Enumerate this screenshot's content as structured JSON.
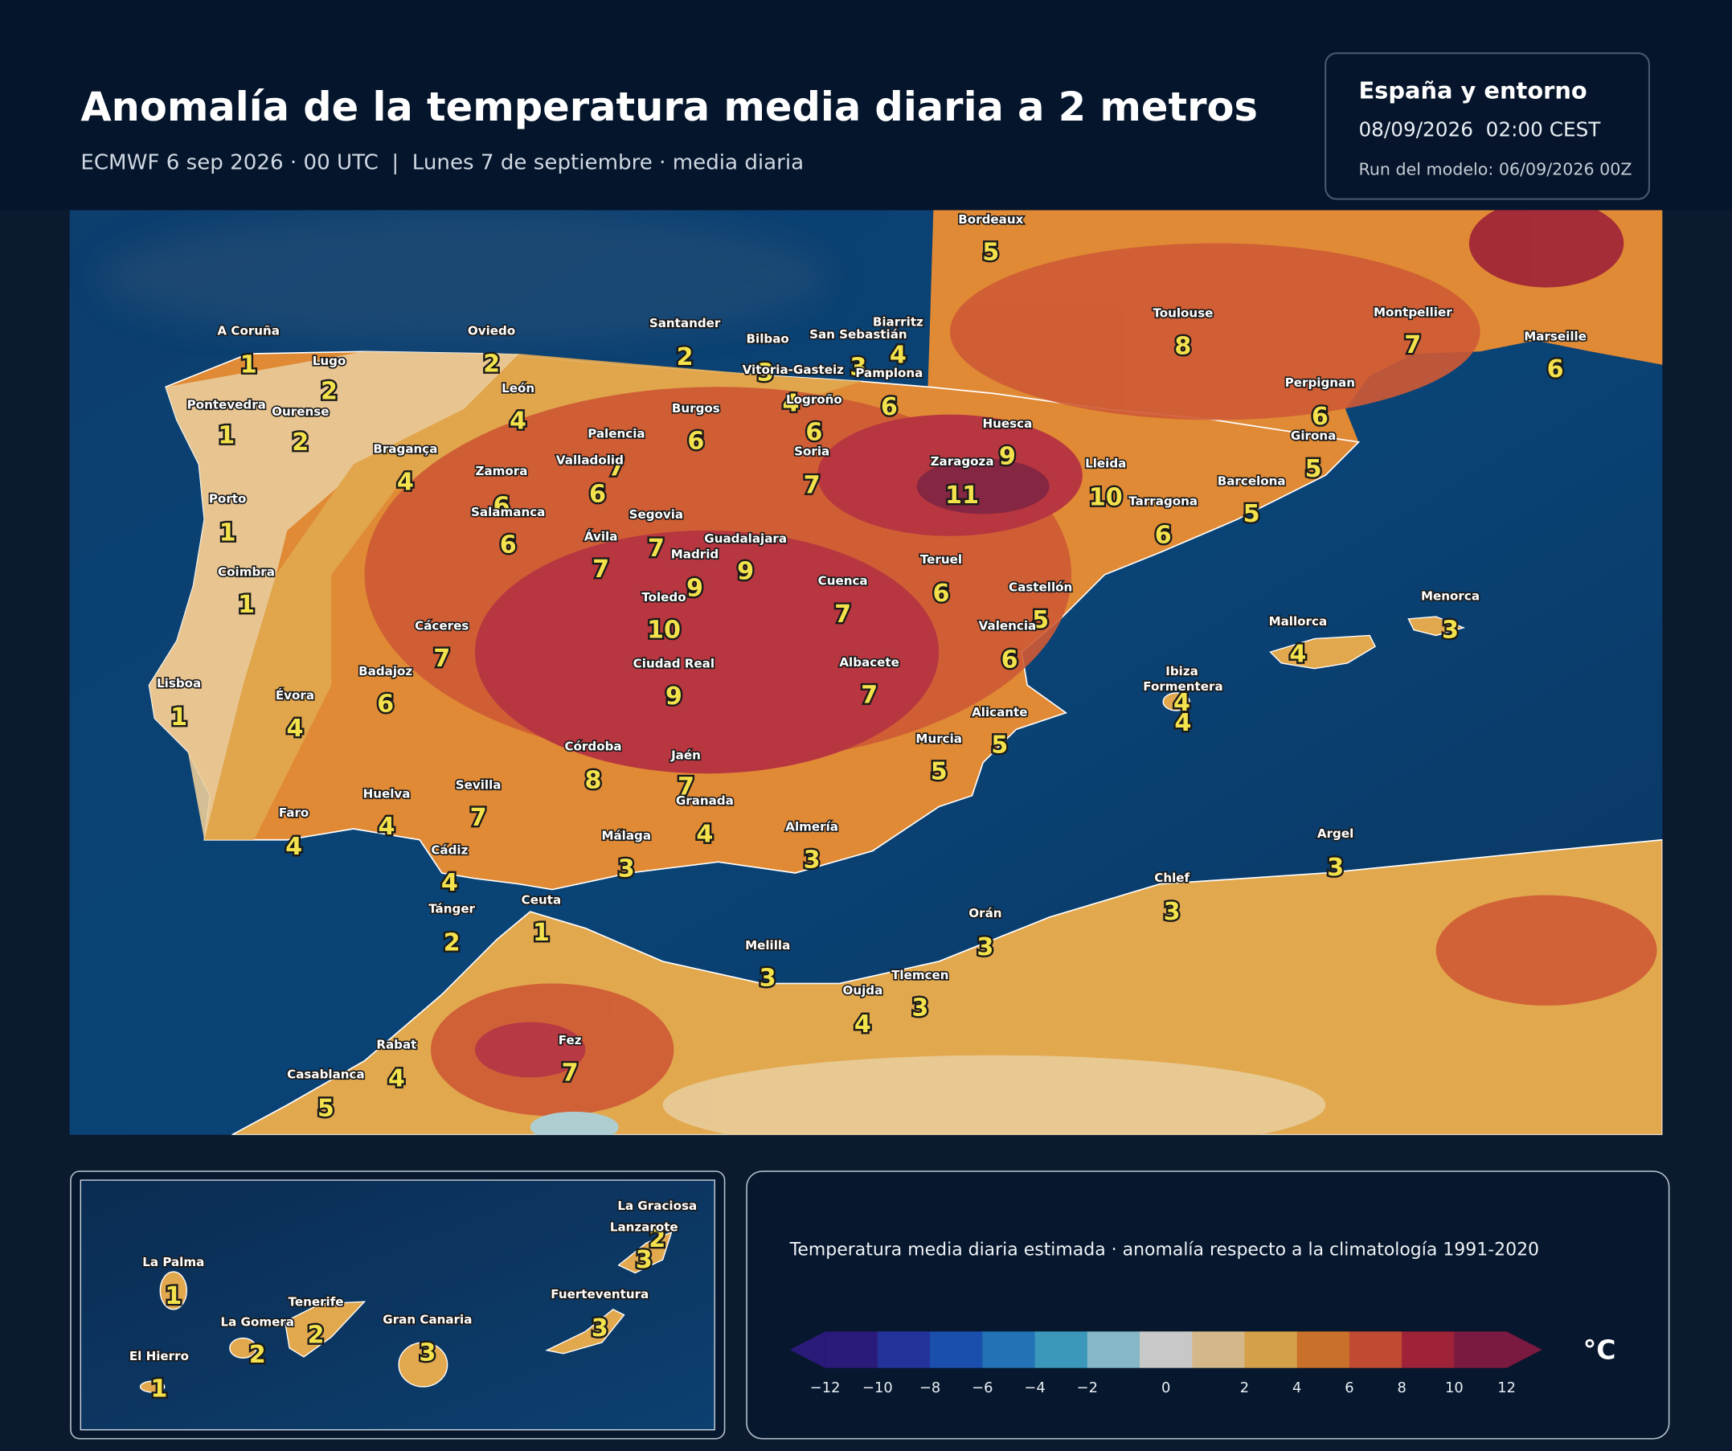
{
  "header": {
    "title": "Anomalía de la temperatura media diaria a 2 metros",
    "subtitle": "ECMWF 6 sep 2026 · 00 UTC  |  Lunes 7 de septiembre · media diaria"
  },
  "info_box": {
    "region": "España y entorno",
    "valid_time": "08/09/2026  02:00 CEST",
    "model_run": "Run del modelo: 06/09/2026 00Z"
  },
  "map": {
    "cities": [
      {
        "name": "Bordeaux",
        "value": 5
      },
      {
        "name": "A Coruña",
        "value": 1
      },
      {
        "name": "Lugo",
        "value": 2
      },
      {
        "name": "Oviedo",
        "value": 2
      },
      {
        "name": "Santander",
        "value": 2
      },
      {
        "name": "Bilbao",
        "value": 3
      },
      {
        "name": "Vitoria-Gasteiz",
        "value": 4
      },
      {
        "name": "Logroño",
        "value": 6
      },
      {
        "name": "San Sebastián",
        "value": 3
      },
      {
        "name": "Biarritz",
        "value": 4
      },
      {
        "name": "Pamplona",
        "value": 6
      },
      {
        "name": "Pontevedra",
        "value": 1
      },
      {
        "name": "Ourense",
        "value": 2
      },
      {
        "name": "León",
        "value": 4
      },
      {
        "name": "Burgos",
        "value": 6
      },
      {
        "name": "Palencia",
        "value": 7
      },
      {
        "name": "Valladolid",
        "value": 6
      },
      {
        "name": "Soria",
        "value": 7
      },
      {
        "name": "Huesca",
        "value": 9
      },
      {
        "name": "Zaragoza",
        "value": 11
      },
      {
        "name": "Lleida",
        "value": 10
      },
      {
        "name": "Bragança",
        "value": 4
      },
      {
        "name": "Zamora",
        "value": 6
      },
      {
        "name": "Salamanca",
        "value": 6
      },
      {
        "name": "Tarragona",
        "value": 6
      },
      {
        "name": "Barcelona",
        "value": 5
      },
      {
        "name": "Girona",
        "value": 5
      },
      {
        "name": "Perpignan",
        "value": 6
      },
      {
        "name": "Toulouse",
        "value": 8
      },
      {
        "name": "Montpellier",
        "value": 7
      },
      {
        "name": "Marseille",
        "value": 6
      },
      {
        "name": "Porto",
        "value": 1
      },
      {
        "name": "Segovia",
        "value": 7
      },
      {
        "name": "Ávila",
        "value": 7
      },
      {
        "name": "Madrid",
        "value": 9
      },
      {
        "name": "Guadalajara",
        "value": 9
      },
      {
        "name": "Coimbra",
        "value": 1
      },
      {
        "name": "Teruel",
        "value": 6
      },
      {
        "name": "Cuenca",
        "value": 7
      },
      {
        "name": "Castellón",
        "value": 5
      },
      {
        "name": "Toledo",
        "value": 10
      },
      {
        "name": "Cáceres",
        "value": 7
      },
      {
        "name": "Valencia",
        "value": 6
      },
      {
        "name": "Menorca",
        "value": 3
      },
      {
        "name": "Mallorca",
        "value": 4
      },
      {
        "name": "Badajoz",
        "value": 6
      },
      {
        "name": "Ciudad Real",
        "value": 9
      },
      {
        "name": "Albacete",
        "value": 7
      },
      {
        "name": "Ibiza",
        "value": 4
      },
      {
        "name": "Formentera",
        "value": 4
      },
      {
        "name": "Lisboa",
        "value": 1
      },
      {
        "name": "Évora",
        "value": 4
      },
      {
        "name": "Alicante",
        "value": 5
      },
      {
        "name": "Murcia",
        "value": 5
      },
      {
        "name": "Córdoba",
        "value": 8
      },
      {
        "name": "Jaén",
        "value": 7
      },
      {
        "name": "Huelva",
        "value": 4
      },
      {
        "name": "Sevilla",
        "value": 7
      },
      {
        "name": "Granada",
        "value": 4
      },
      {
        "name": "Faro",
        "value": 4
      },
      {
        "name": "Almería",
        "value": 3
      },
      {
        "name": "Málaga",
        "value": 3
      },
      {
        "name": "Cádiz",
        "value": 4
      },
      {
        "name": "Argel",
        "value": 3
      },
      {
        "name": "Chlef",
        "value": 3
      },
      {
        "name": "Tánger",
        "value": 2
      },
      {
        "name": "Ceuta",
        "value": 1
      },
      {
        "name": "Orán",
        "value": 3
      },
      {
        "name": "Melilla",
        "value": 3
      },
      {
        "name": "Tlemcen",
        "value": 3
      },
      {
        "name": "Oujda",
        "value": 4
      },
      {
        "name": "Rabat",
        "value": 4
      },
      {
        "name": "Fez",
        "value": 7
      },
      {
        "name": "Casablanca",
        "value": 5
      }
    ]
  },
  "canarias_inset": {
    "islands": [
      {
        "name": "La Graciosa",
        "value": 2
      },
      {
        "name": "Lanzarote",
        "value": 3
      },
      {
        "name": "La Palma",
        "value": 1
      },
      {
        "name": "Tenerife",
        "value": 2
      },
      {
        "name": "Fuerteventura",
        "value": 3
      },
      {
        "name": "La Gomera",
        "value": 2
      },
      {
        "name": "Gran Canaria",
        "value": 3
      },
      {
        "name": "El Hierro",
        "value": 1
      }
    ]
  },
  "legend": {
    "caption": "Temperatura media diaria estimada · anomalía respecto a la climatología 1991-2020",
    "unit": "°C",
    "ticks": [
      {
        "value": -12,
        "label": "−12"
      },
      {
        "value": -10,
        "label": "−10"
      },
      {
        "value": -8,
        "label": "−8"
      },
      {
        "value": -6,
        "label": "−6"
      },
      {
        "value": -4,
        "label": "−4"
      },
      {
        "value": -2,
        "label": "−2"
      },
      0,
      2,
      4,
      6,
      8,
      10,
      12
    ],
    "colors": [
      "#2a1a7a",
      "#23339a",
      "#1a4fad",
      "#2272b5",
      "#3b98bb",
      "#86b7c7",
      "#c8c8c8",
      "#d4b88a",
      "#d4a04a",
      "#c9702a",
      "#c04a32",
      "#9e2238",
      "#7a1a40"
    ]
  }
}
